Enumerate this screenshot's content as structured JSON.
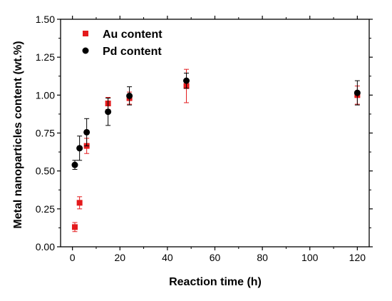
{
  "chart_data": {
    "type": "scatter",
    "xlabel": "Reaction time (h)",
    "ylabel": "Metal nanoparticles content (wt.%)",
    "xlim": [
      -5,
      125
    ],
    "ylim": [
      0,
      1.5
    ],
    "xticks": [
      0,
      20,
      40,
      60,
      80,
      100,
      120
    ],
    "yticks": [
      0.0,
      0.25,
      0.5,
      0.75,
      1.0,
      1.25,
      1.5
    ],
    "xtick_labels": [
      "0",
      "20",
      "40",
      "60",
      "80",
      "100",
      "120"
    ],
    "ytick_labels": [
      "0.00",
      "0.25",
      "0.50",
      "0.75",
      "1.00",
      "1.25",
      "1.50"
    ],
    "grid": false,
    "legend_position": "top-left",
    "series": [
      {
        "name": "Au content",
        "marker": "square",
        "color": "#e41a1c",
        "x": [
          1,
          3,
          6,
          15,
          24,
          48,
          120
        ],
        "y": [
          0.13,
          0.29,
          0.665,
          0.945,
          0.98,
          1.06,
          1.0
        ],
        "err": [
          0.03,
          0.04,
          0.05,
          0.04,
          0.04,
          0.11,
          0.06
        ]
      },
      {
        "name": "Pd content",
        "marker": "circle",
        "color": "#000000",
        "x": [
          1,
          3,
          6,
          15,
          24,
          48,
          120
        ],
        "y": [
          0.54,
          0.65,
          0.755,
          0.89,
          0.995,
          1.095,
          1.015
        ],
        "err": [
          0.03,
          0.08,
          0.09,
          0.09,
          0.06,
          0.05,
          0.08
        ]
      }
    ]
  }
}
